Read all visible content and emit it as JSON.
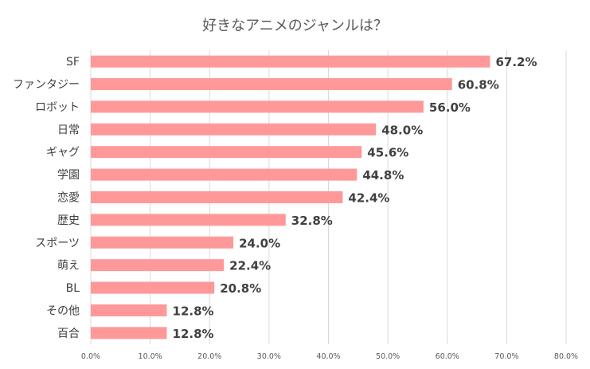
{
  "chart_data": {
    "type": "bar",
    "orientation": "horizontal",
    "title": "好きなアニメのジャンルは？",
    "categories": [
      "SF",
      "ファンタジー",
      "ロボット",
      "日常",
      "ギャグ",
      "学園",
      "恋愛",
      "歴史",
      "スポーツ",
      "萌え",
      "BL",
      "その他",
      "百合"
    ],
    "values": [
      67.2,
      60.8,
      56.0,
      48.0,
      45.6,
      44.8,
      42.4,
      32.8,
      24.0,
      22.4,
      20.8,
      12.8,
      12.8
    ],
    "data_labels": [
      "67.2%",
      "60.8%",
      "56.0%",
      "48.0%",
      "45.6%",
      "44.8%",
      "42.4%",
      "32.8%",
      "24.0%",
      "22.4%",
      "20.8%",
      "12.8%",
      "12.8%"
    ],
    "xlim": [
      0,
      80
    ],
    "x_ticks": [
      "0.0%",
      "10.0%",
      "20.0%",
      "30.0%",
      "40.0%",
      "50.0%",
      "60.0%",
      "70.0%",
      "80.0%"
    ],
    "grid": true,
    "legend": "none",
    "bar_color": "#ff9999"
  }
}
